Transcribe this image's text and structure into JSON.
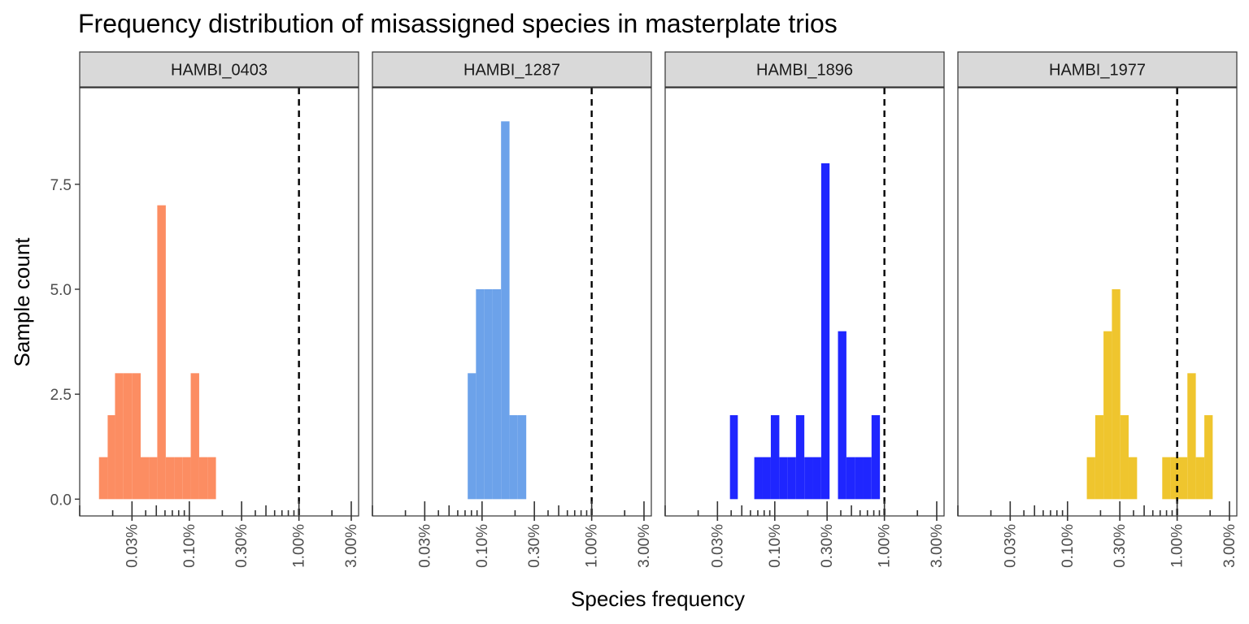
{
  "chart_data": {
    "type": "bar",
    "title": "Frequency distribution of misassigned species in masterplate trios",
    "xlabel": "Species frequency",
    "ylabel": "Sample count",
    "x_scale": "log10",
    "xlim": [
      0.0001,
      0.035
    ],
    "ylim": [
      -0.4,
      9.8
    ],
    "y_ticks": [
      0.0,
      2.5,
      5.0,
      7.5
    ],
    "y_tick_labels": [
      "0.0",
      "2.5",
      "5.0",
      "7.5"
    ],
    "x_ticks": [
      0.0003,
      0.001,
      0.003,
      0.01,
      0.03
    ],
    "x_tick_labels": [
      "0.03%",
      "0.10%",
      "0.30%",
      "1.00%",
      "3.00%"
    ],
    "reference_line": {
      "x": 0.01,
      "style": "dashed"
    },
    "rug_ticks": true,
    "legend": "none",
    "grid": false,
    "panels": [
      {
        "name": "HAMBI_0403",
        "color": "#FC8D62",
        "bins": [
          {
            "x0": 0.00015,
            "x1": 0.00018,
            "count": 1
          },
          {
            "x0": 0.00018,
            "x1": 0.00021,
            "count": 2
          },
          {
            "x0": 0.00021,
            "x1": 0.00025,
            "count": 3
          },
          {
            "x0": 0.00025,
            "x1": 0.0003,
            "count": 3
          },
          {
            "x0": 0.0003,
            "x1": 0.00036,
            "count": 3
          },
          {
            "x0": 0.00036,
            "x1": 0.00043,
            "count": 1
          },
          {
            "x0": 0.00043,
            "x1": 0.00051,
            "count": 1
          },
          {
            "x0": 0.00051,
            "x1": 0.00061,
            "count": 7
          },
          {
            "x0": 0.00061,
            "x1": 0.00073,
            "count": 1
          },
          {
            "x0": 0.00073,
            "x1": 0.00087,
            "count": 1
          },
          {
            "x0": 0.00087,
            "x1": 0.00103,
            "count": 1
          },
          {
            "x0": 0.00103,
            "x1": 0.00123,
            "count": 3
          },
          {
            "x0": 0.00123,
            "x1": 0.00147,
            "count": 1
          },
          {
            "x0": 0.00147,
            "x1": 0.00175,
            "count": 1
          }
        ]
      },
      {
        "name": "HAMBI_1287",
        "color": "#6CA2EA",
        "bins": [
          {
            "x0": 0.00074,
            "x1": 0.00088,
            "count": 3
          },
          {
            "x0": 0.00088,
            "x1": 0.00105,
            "count": 5
          },
          {
            "x0": 0.00105,
            "x1": 0.00125,
            "count": 5
          },
          {
            "x0": 0.00125,
            "x1": 0.00149,
            "count": 5
          },
          {
            "x0": 0.00149,
            "x1": 0.00178,
            "count": 9
          },
          {
            "x0": 0.00178,
            "x1": 0.00212,
            "count": 2
          },
          {
            "x0": 0.00212,
            "x1": 0.00253,
            "count": 2
          }
        ]
      },
      {
        "name": "HAMBI_1896",
        "color": "#1F26FF",
        "bins": [
          {
            "x0": 0.00039,
            "x1": 0.00046,
            "count": 2
          },
          {
            "x0": 0.00065,
            "x1": 0.00077,
            "count": 1
          },
          {
            "x0": 0.00077,
            "x1": 0.00092,
            "count": 1
          },
          {
            "x0": 0.00092,
            "x1": 0.0011,
            "count": 2
          },
          {
            "x0": 0.0011,
            "x1": 0.00131,
            "count": 1
          },
          {
            "x0": 0.00131,
            "x1": 0.00156,
            "count": 1
          },
          {
            "x0": 0.00156,
            "x1": 0.00186,
            "count": 2
          },
          {
            "x0": 0.00186,
            "x1": 0.00222,
            "count": 1
          },
          {
            "x0": 0.00222,
            "x1": 0.00265,
            "count": 1
          },
          {
            "x0": 0.00265,
            "x1": 0.00316,
            "count": 8
          },
          {
            "x0": 0.00377,
            "x1": 0.0045,
            "count": 4
          },
          {
            "x0": 0.0045,
            "x1": 0.00536,
            "count": 1
          },
          {
            "x0": 0.00536,
            "x1": 0.0064,
            "count": 1
          },
          {
            "x0": 0.0064,
            "x1": 0.00763,
            "count": 1
          },
          {
            "x0": 0.00763,
            "x1": 0.0091,
            "count": 2
          }
        ]
      },
      {
        "name": "HAMBI_1977",
        "color": "#EFC52E",
        "bins": [
          {
            "x0": 0.0015,
            "x1": 0.00179,
            "count": 1
          },
          {
            "x0": 0.00179,
            "x1": 0.00213,
            "count": 2
          },
          {
            "x0": 0.00213,
            "x1": 0.00254,
            "count": 4
          },
          {
            "x0": 0.00254,
            "x1": 0.00303,
            "count": 5
          },
          {
            "x0": 0.00303,
            "x1": 0.00361,
            "count": 2
          },
          {
            "x0": 0.00361,
            "x1": 0.00431,
            "count": 1
          },
          {
            "x0": 0.00731,
            "x1": 0.00872,
            "count": 1
          },
          {
            "x0": 0.00872,
            "x1": 0.0104,
            "count": 1
          },
          {
            "x0": 0.0104,
            "x1": 0.0124,
            "count": 1
          },
          {
            "x0": 0.0124,
            "x1": 0.0148,
            "count": 3
          },
          {
            "x0": 0.0148,
            "x1": 0.0177,
            "count": 1
          },
          {
            "x0": 0.0177,
            "x1": 0.0211,
            "count": 2
          }
        ]
      }
    ]
  }
}
